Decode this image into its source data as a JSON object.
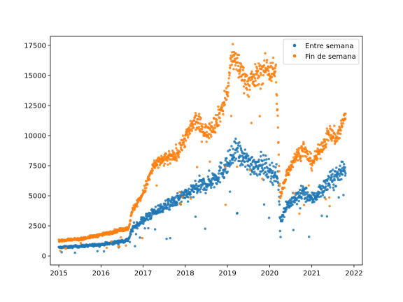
{
  "chart_data": {
    "type": "scatter",
    "title": "",
    "xlabel": "",
    "ylabel": "",
    "xlim": [
      2014.8,
      2022.2
    ],
    "ylim": [
      -750,
      18250
    ],
    "xticks": [
      2015,
      2016,
      2017,
      2018,
      2019,
      2020,
      2021,
      2022
    ],
    "xtick_labels": [
      "2015",
      "2016",
      "2017",
      "2018",
      "2019",
      "2020",
      "2021",
      "2022"
    ],
    "yticks": [
      0,
      2500,
      5000,
      7500,
      10000,
      12500,
      15000,
      17500
    ],
    "ytick_labels": [
      "0",
      "2500",
      "5000",
      "7500",
      "10000",
      "12500",
      "15000",
      "17500"
    ],
    "grid": false,
    "legend_position": "top-right",
    "series": [
      {
        "name": "Entre semana",
        "color": "#1f77b4",
        "anchors": [
          [
            2015.0,
            700
          ],
          [
            2015.5,
            800
          ],
          [
            2016.0,
            950
          ],
          [
            2016.4,
            1150
          ],
          [
            2016.65,
            1350
          ],
          [
            2016.75,
            2300
          ],
          [
            2017.0,
            3000
          ],
          [
            2017.25,
            3600
          ],
          [
            2017.5,
            4100
          ],
          [
            2017.75,
            4500
          ],
          [
            2018.0,
            5000
          ],
          [
            2018.25,
            5600
          ],
          [
            2018.5,
            6000
          ],
          [
            2018.75,
            6600
          ],
          [
            2019.0,
            7600
          ],
          [
            2019.2,
            8700
          ],
          [
            2019.4,
            8000
          ],
          [
            2019.6,
            7600
          ],
          [
            2019.8,
            7600
          ],
          [
            2020.0,
            7100
          ],
          [
            2020.2,
            6600
          ],
          [
            2020.25,
            2900
          ],
          [
            2020.4,
            4200
          ],
          [
            2020.6,
            4700
          ],
          [
            2020.8,
            5300
          ],
          [
            2021.0,
            4700
          ],
          [
            2021.2,
            5400
          ],
          [
            2021.4,
            6100
          ],
          [
            2021.6,
            6700
          ],
          [
            2021.8,
            7500
          ]
        ],
        "noise": 0.12
      },
      {
        "name": "Fin de semana",
        "color": "#ff7f0e",
        "anchors": [
          [
            2015.0,
            1250
          ],
          [
            2015.5,
            1400
          ],
          [
            2016.0,
            1750
          ],
          [
            2016.4,
            2100
          ],
          [
            2016.65,
            2300
          ],
          [
            2016.75,
            3800
          ],
          [
            2017.0,
            5200
          ],
          [
            2017.25,
            7500
          ],
          [
            2017.5,
            8000
          ],
          [
            2017.75,
            8300
          ],
          [
            2018.0,
            9800
          ],
          [
            2018.25,
            11300
          ],
          [
            2018.5,
            10200
          ],
          [
            2018.75,
            11200
          ],
          [
            2019.0,
            13500
          ],
          [
            2019.1,
            16800
          ],
          [
            2019.3,
            15500
          ],
          [
            2019.5,
            14200
          ],
          [
            2019.7,
            15000
          ],
          [
            2019.9,
            15600
          ],
          [
            2020.15,
            15300
          ],
          [
            2020.25,
            4800
          ],
          [
            2020.4,
            6800
          ],
          [
            2020.6,
            8200
          ],
          [
            2020.8,
            8900
          ],
          [
            2021.0,
            7700
          ],
          [
            2021.2,
            8800
          ],
          [
            2021.4,
            10200
          ],
          [
            2021.6,
            9800
          ],
          [
            2021.8,
            11700
          ]
        ],
        "noise": 0.07
      }
    ]
  }
}
